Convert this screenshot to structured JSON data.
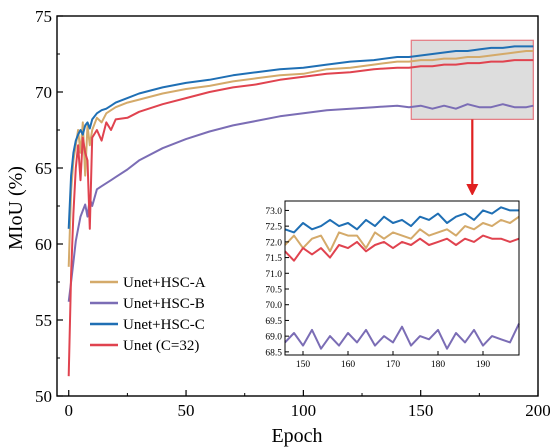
{
  "chart_data": {
    "type": "line",
    "xlabel": "Epoch",
    "ylabel": "MIoU (%)",
    "xlim": [
      -5,
      200
    ],
    "ylim": [
      50,
      75
    ],
    "x_ticks": [
      "0",
      "50",
      "100",
      "150",
      "200"
    ],
    "y_ticks": [
      "50",
      "55",
      "60",
      "65",
      "70",
      "75"
    ],
    "legend_position": "bottom-left",
    "series": [
      {
        "name": "Unet+HSC-A",
        "color": "#D4AA6A",
        "x": [
          0,
          1,
          2,
          3,
          4,
          5,
          6,
          7,
          8,
          9,
          10,
          12,
          14,
          16,
          18,
          20,
          25,
          30,
          40,
          50,
          60,
          70,
          80,
          90,
          100,
          110,
          120,
          130,
          140,
          145,
          150,
          155,
          160,
          165,
          170,
          175,
          180,
          185,
          190,
          195,
          198
        ],
        "y": [
          58.5,
          63.5,
          65.5,
          66.5,
          67.5,
          66.0,
          68.0,
          64.5,
          67.8,
          66.5,
          67.5,
          68.3,
          68.0,
          68.6,
          68.8,
          69.0,
          69.3,
          69.5,
          69.9,
          70.2,
          70.4,
          70.7,
          70.9,
          71.1,
          71.2,
          71.5,
          71.6,
          71.8,
          72.0,
          72.0,
          72.1,
          72.1,
          72.2,
          72.2,
          72.3,
          72.3,
          72.4,
          72.5,
          72.6,
          72.7,
          72.7
        ]
      },
      {
        "name": "Unet+HSC-B",
        "color": "#7B6DB5",
        "x": [
          0,
          1,
          2,
          3,
          4,
          5,
          6,
          7,
          8,
          9,
          10,
          12,
          14,
          16,
          18,
          20,
          25,
          30,
          40,
          50,
          60,
          70,
          80,
          90,
          100,
          110,
          120,
          130,
          140,
          145,
          150,
          155,
          160,
          165,
          170,
          175,
          180,
          185,
          190,
          195,
          198
        ],
        "y": [
          56.2,
          57.5,
          58.8,
          60.2,
          61.0,
          61.8,
          62.2,
          62.6,
          61.8,
          63.0,
          62.5,
          63.6,
          63.8,
          64.0,
          64.2,
          64.4,
          64.9,
          65.5,
          66.3,
          66.9,
          67.4,
          67.8,
          68.1,
          68.4,
          68.6,
          68.8,
          68.9,
          69.0,
          69.1,
          69.0,
          69.1,
          68.9,
          69.1,
          68.9,
          69.2,
          69.0,
          69.0,
          69.2,
          69.0,
          69.0,
          69.1
        ]
      },
      {
        "name": "Unet+HSC-C",
        "color": "#1F6FB4",
        "x": [
          0,
          1,
          2,
          3,
          4,
          5,
          6,
          7,
          8,
          9,
          10,
          12,
          14,
          16,
          18,
          20,
          25,
          30,
          40,
          50,
          60,
          70,
          80,
          90,
          100,
          110,
          120,
          130,
          140,
          145,
          150,
          155,
          160,
          165,
          170,
          175,
          180,
          185,
          190,
          195,
          198
        ],
        "y": [
          61.0,
          64.5,
          66.0,
          66.8,
          67.2,
          67.5,
          67.2,
          67.8,
          68.0,
          67.6,
          68.2,
          68.6,
          68.8,
          68.9,
          69.1,
          69.3,
          69.6,
          69.9,
          70.3,
          70.6,
          70.8,
          71.1,
          71.3,
          71.5,
          71.6,
          71.8,
          72.0,
          72.1,
          72.3,
          72.3,
          72.4,
          72.5,
          72.6,
          72.7,
          72.7,
          72.8,
          72.9,
          72.9,
          73.0,
          73.0,
          73.0
        ]
      },
      {
        "name": "Unet (C=32)",
        "color": "#E0434F",
        "x": [
          0,
          1,
          2,
          3,
          4,
          5,
          6,
          7,
          8,
          9,
          10,
          12,
          14,
          16,
          18,
          20,
          25,
          30,
          40,
          50,
          60,
          70,
          80,
          90,
          100,
          110,
          120,
          130,
          140,
          145,
          150,
          155,
          160,
          165,
          170,
          175,
          180,
          185,
          190,
          195,
          198
        ],
        "y": [
          51.3,
          58.0,
          62.0,
          65.0,
          66.5,
          64.2,
          67.0,
          66.0,
          65.5,
          61.0,
          67.0,
          67.5,
          66.8,
          68.0,
          67.5,
          68.2,
          68.3,
          68.7,
          69.2,
          69.6,
          70.0,
          70.3,
          70.5,
          70.8,
          71.0,
          71.2,
          71.3,
          71.5,
          71.6,
          71.6,
          71.7,
          71.7,
          71.8,
          71.8,
          71.9,
          71.9,
          72.0,
          72.0,
          72.1,
          72.1,
          72.1
        ]
      }
    ],
    "zoom_box": {
      "x": [
        146,
        198
      ],
      "y": [
        68.2,
        73.4
      ]
    },
    "inset": {
      "xlim": [
        146,
        198
      ],
      "ylim": [
        68.4,
        73.3
      ],
      "x_ticks": [
        "150",
        "160",
        "170",
        "180",
        "190"
      ],
      "y_ticks": [
        "68.5",
        "69.0",
        "69.5",
        "70.0",
        "70.5",
        "71.0",
        "71.5",
        "72.0",
        "72.5",
        "73.0"
      ],
      "series": [
        {
          "name": "Unet+HSC-A",
          "color": "#D4AA6A",
          "x": [
            146,
            148,
            150,
            152,
            154,
            156,
            158,
            160,
            162,
            164,
            166,
            168,
            170,
            172,
            174,
            176,
            178,
            180,
            182,
            184,
            186,
            188,
            190,
            192,
            194,
            196,
            198
          ],
          "y": [
            71.9,
            72.2,
            71.8,
            72.1,
            72.2,
            71.7,
            72.3,
            72.2,
            72.2,
            71.8,
            72.3,
            72.1,
            72.3,
            72.2,
            72.1,
            72.4,
            72.2,
            72.3,
            72.4,
            72.2,
            72.5,
            72.4,
            72.6,
            72.5,
            72.7,
            72.6,
            72.8
          ]
        },
        {
          "name": "Unet+HSC-B",
          "color": "#7B6DB5",
          "x": [
            146,
            148,
            150,
            152,
            154,
            156,
            158,
            160,
            162,
            164,
            166,
            168,
            170,
            172,
            174,
            176,
            178,
            180,
            182,
            184,
            186,
            188,
            190,
            192,
            194,
            196,
            198
          ],
          "y": [
            68.8,
            69.1,
            68.7,
            69.2,
            68.6,
            69.0,
            68.7,
            69.1,
            68.8,
            69.2,
            68.7,
            69.0,
            68.8,
            69.3,
            68.7,
            69.0,
            68.9,
            69.2,
            68.6,
            69.1,
            68.8,
            69.2,
            68.7,
            69.0,
            68.9,
            68.8,
            69.4
          ]
        },
        {
          "name": "Unet+HSC-C",
          "color": "#1F6FB4",
          "x": [
            146,
            148,
            150,
            152,
            154,
            156,
            158,
            160,
            162,
            164,
            166,
            168,
            170,
            172,
            174,
            176,
            178,
            180,
            182,
            184,
            186,
            188,
            190,
            192,
            194,
            196,
            198
          ],
          "y": [
            72.4,
            72.3,
            72.6,
            72.4,
            72.5,
            72.7,
            72.5,
            72.6,
            72.4,
            72.7,
            72.5,
            72.8,
            72.6,
            72.7,
            72.5,
            72.8,
            72.7,
            72.9,
            72.6,
            72.8,
            72.9,
            72.7,
            73.0,
            72.9,
            73.1,
            73.0,
            73.0
          ]
        },
        {
          "name": "Unet (C=32)",
          "color": "#E0434F",
          "x": [
            146,
            148,
            150,
            152,
            154,
            156,
            158,
            160,
            162,
            164,
            166,
            168,
            170,
            172,
            174,
            176,
            178,
            180,
            182,
            184,
            186,
            188,
            190,
            192,
            194,
            196,
            198
          ],
          "y": [
            71.7,
            71.4,
            71.8,
            71.6,
            71.8,
            71.5,
            71.9,
            71.8,
            72.0,
            71.7,
            71.9,
            72.0,
            71.8,
            72.0,
            71.9,
            72.1,
            71.9,
            72.0,
            72.1,
            71.9,
            72.1,
            72.0,
            72.2,
            72.1,
            72.1,
            72.0,
            72.1
          ]
        }
      ]
    }
  }
}
